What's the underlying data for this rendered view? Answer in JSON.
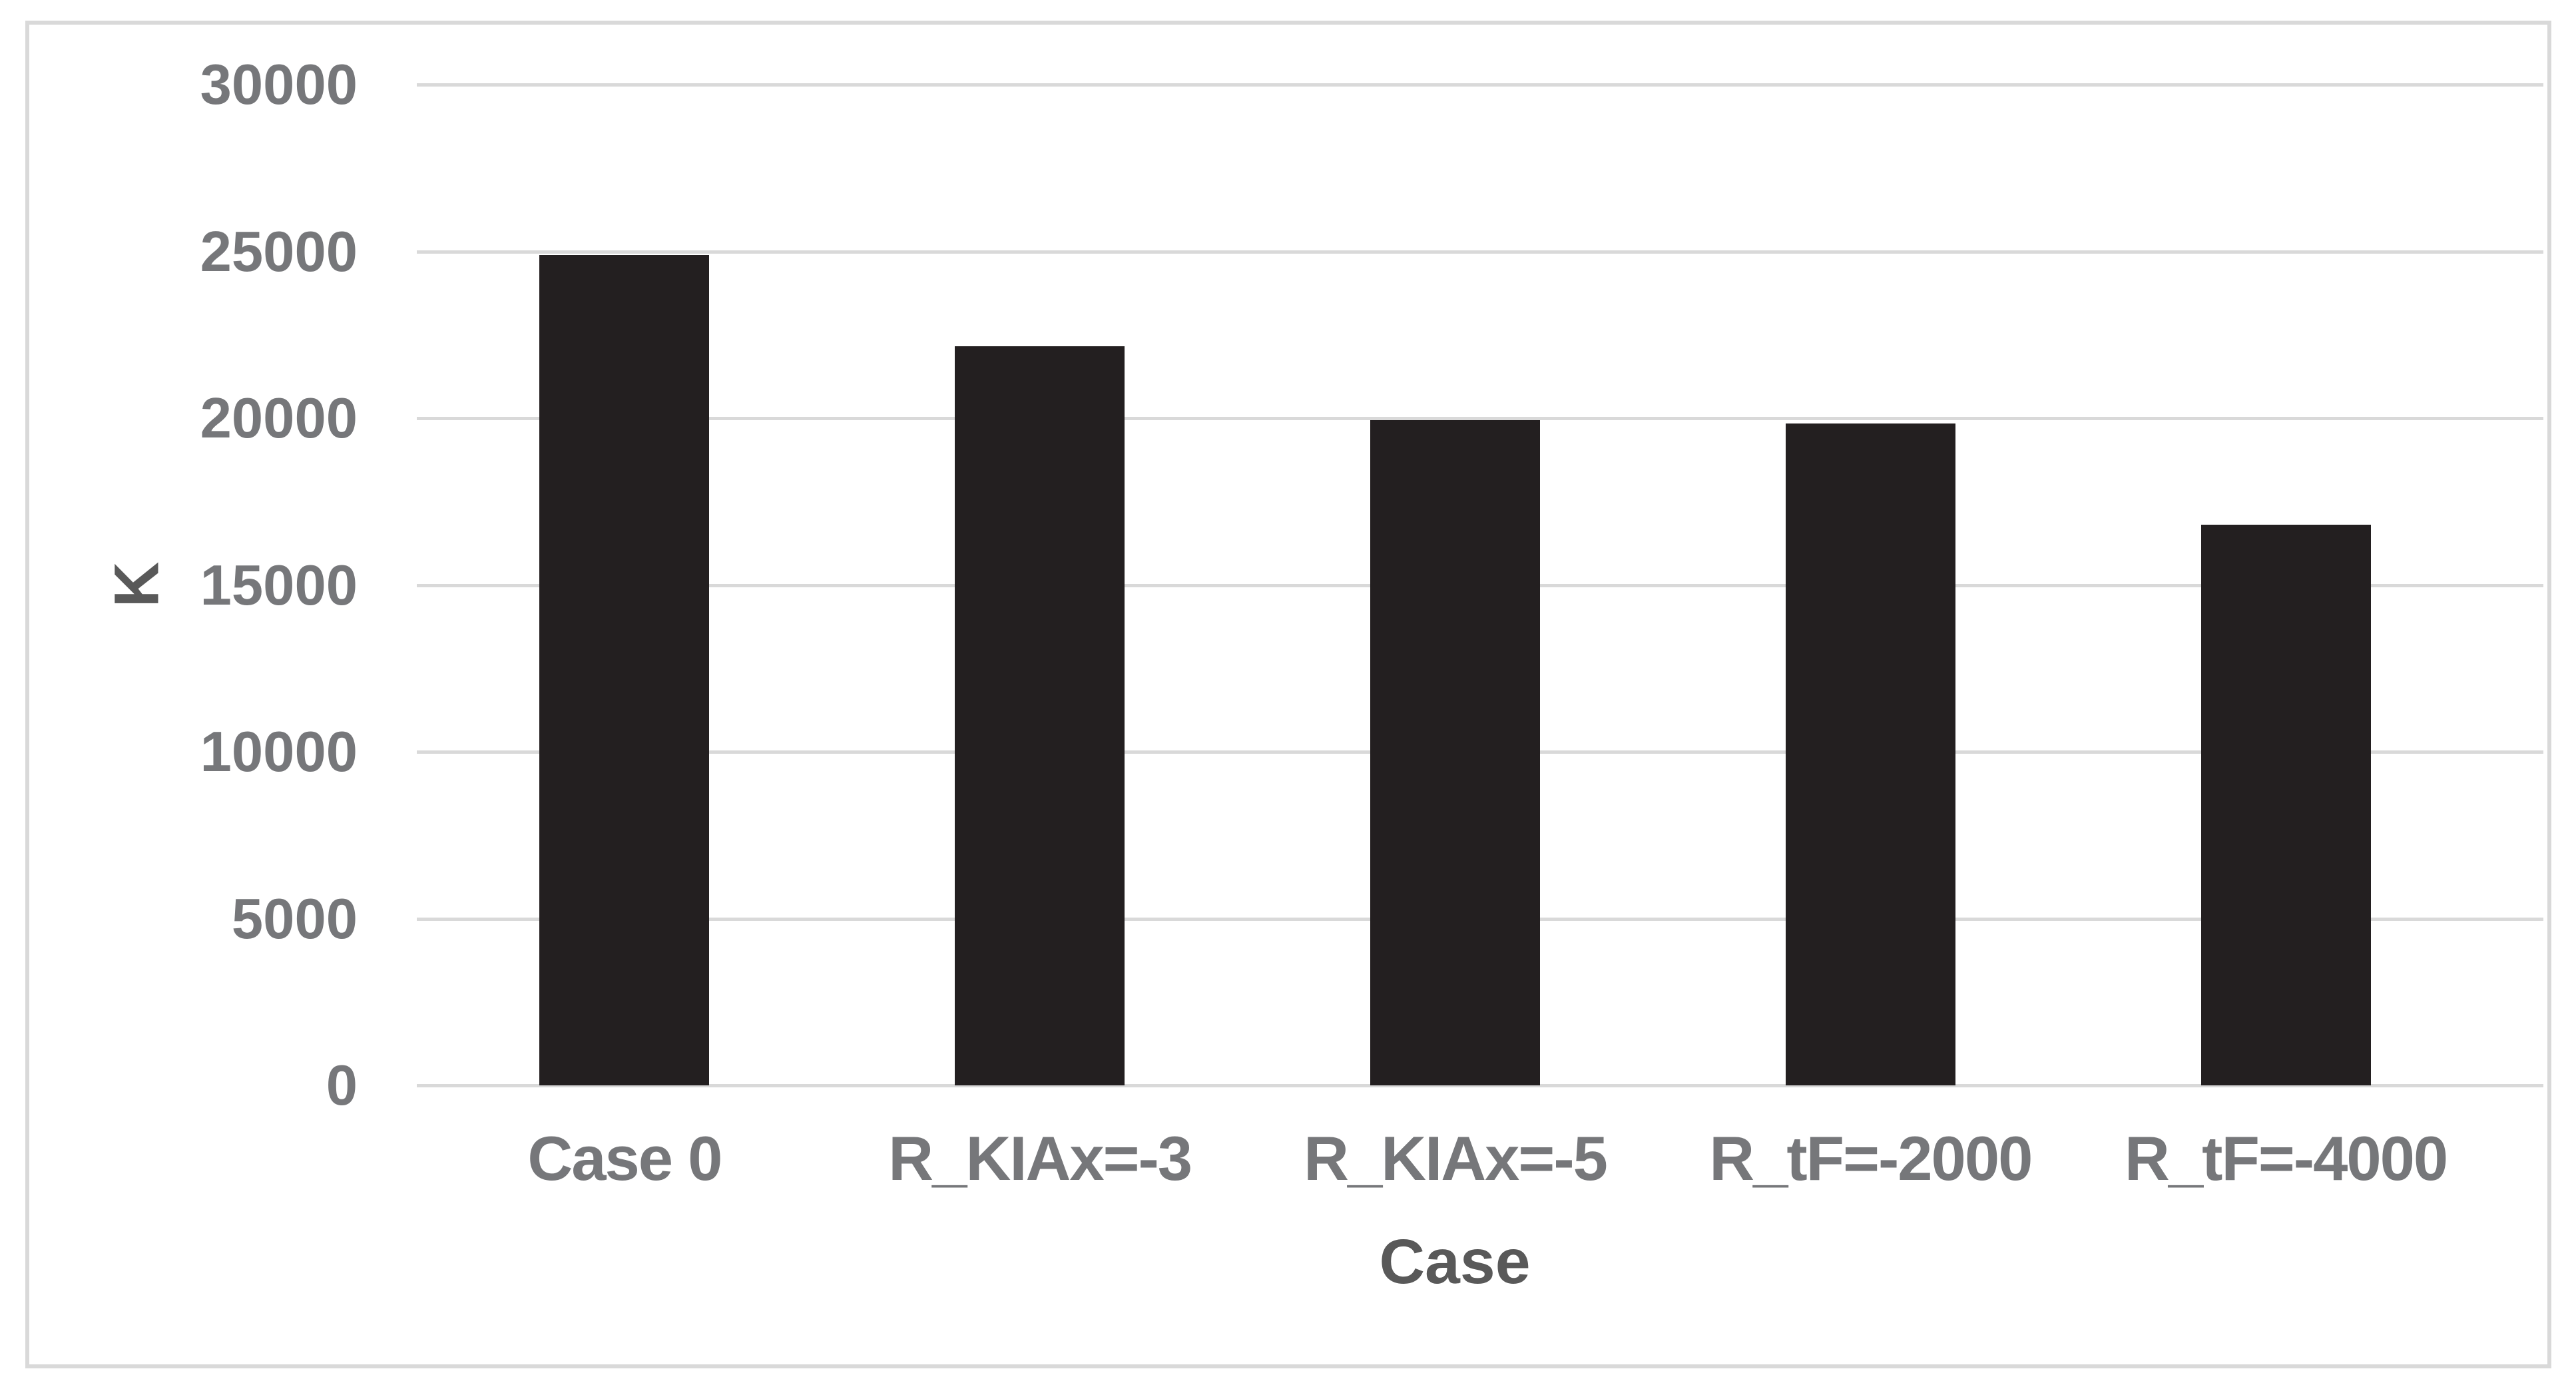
{
  "chart_data": {
    "type": "bar",
    "categories": [
      "Case 0",
      "R_KIAx=-3",
      "R_KIAx=-5",
      "R_tF=-2000",
      "R_tF=-4000"
    ],
    "values": [
      24900,
      22150,
      19950,
      19850,
      16800
    ],
    "title": "",
    "xlabel": "Case",
    "ylabel": "K",
    "ylim": [
      0,
      30000
    ],
    "yticks": [
      0,
      5000,
      10000,
      15000,
      20000,
      25000,
      30000
    ],
    "grid": "horizontal",
    "legend": "none",
    "colors": {
      "bar": "#231f20",
      "gridline": "#d9d9d9",
      "frame_border": "#d9d9d9",
      "tick_label": "#76777a",
      "axis_title": "#595959",
      "background": "#ffffff"
    }
  }
}
